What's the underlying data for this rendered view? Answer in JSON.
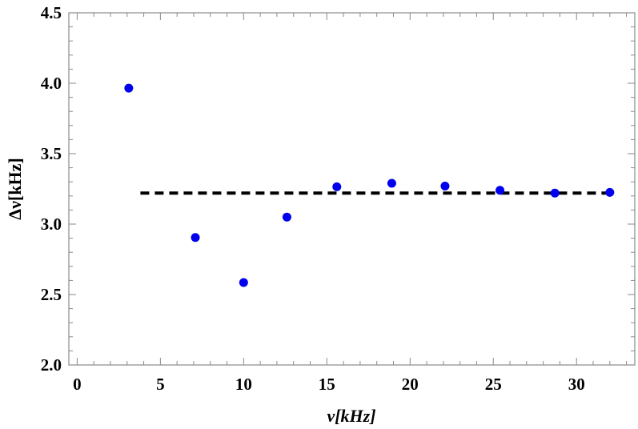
{
  "chart_data": {
    "type": "scatter",
    "title": "",
    "xlabel": "ν[kHz]",
    "ylabel": "Δν[kHz]",
    "xlim": [
      -0.5,
      33.5
    ],
    "ylim": [
      2.0,
      4.5
    ],
    "x_ticks": [
      0,
      5,
      10,
      15,
      20,
      25,
      30
    ],
    "y_ticks": [
      2.0,
      2.5,
      3.0,
      3.5,
      4.0,
      4.5
    ],
    "x_tick_labels": [
      "0",
      "5",
      "10",
      "15",
      "20",
      "25",
      "30"
    ],
    "y_tick_labels": [
      "2.0",
      "2.5",
      "3.0",
      "3.5",
      "4.0",
      "4.5"
    ],
    "grid": false,
    "series": [
      {
        "color": "#0000ee",
        "points": [
          {
            "x": 3.1,
            "y": 3.965
          },
          {
            "x": 7.1,
            "y": 2.905
          },
          {
            "x": 10.0,
            "y": 2.585
          },
          {
            "x": 12.6,
            "y": 3.05
          },
          {
            "x": 15.6,
            "y": 3.265
          },
          {
            "x": 18.9,
            "y": 3.29
          },
          {
            "x": 22.1,
            "y": 3.27
          },
          {
            "x": 25.4,
            "y": 3.24
          },
          {
            "x": 28.7,
            "y": 3.22
          },
          {
            "x": 32.0,
            "y": 3.225
          }
        ]
      }
    ],
    "reference_line": {
      "style": "dashed",
      "color": "#000000",
      "y": 3.22,
      "x_start": 3.8,
      "x_end": 32.3
    }
  }
}
